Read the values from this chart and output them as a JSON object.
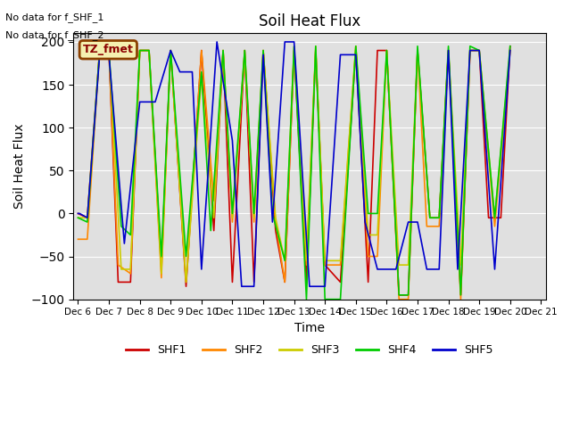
{
  "title": "Soil Heat Flux",
  "ylabel": "Soil Heat Flux",
  "xlabel": "Time",
  "text_no_data": [
    "No data for f_SHF_1",
    "No data for f_SHF_2"
  ],
  "legend_label": "TZ_fmet",
  "ylim": [
    -100,
    210
  ],
  "series_colors": {
    "SHF1": "#cc0000",
    "SHF2": "#ff8800",
    "SHF3": "#cccc00",
    "SHF4": "#00cc00",
    "SHF5": "#0000cc"
  },
  "background_color": "#e0e0e0",
  "x_tick_labels": [
    "Dec 6",
    "Dec 7",
    "Dec 8",
    "Dec 9",
    "Dec 10",
    "Dec 11",
    "Dec 12",
    "Dec 13",
    "Dec 14",
    "Dec 15",
    "Dec 16",
    "Dec 17",
    "Dec 18",
    "Dec 19",
    "Dec 20",
    "Dec 21"
  ],
  "SHF1_x": [
    6.0,
    6.3,
    6.7,
    7.0,
    7.3,
    7.7,
    8.0,
    8.3,
    8.7,
    9.0,
    9.5,
    10.0,
    10.4,
    10.7,
    11.0,
    11.4,
    11.7,
    12.0,
    12.4,
    12.7,
    13.0,
    13.4,
    13.7,
    14.0,
    14.5,
    15.0,
    15.4,
    15.7,
    16.0,
    16.4,
    16.7,
    17.0,
    17.4,
    17.7,
    18.0,
    18.4,
    18.7,
    19.0,
    19.3,
    19.7,
    20.0
  ],
  "SHF1_y": [
    0,
    -5,
    190,
    190,
    -80,
    -80,
    190,
    190,
    -60,
    190,
    -85,
    190,
    -20,
    190,
    -80,
    190,
    -80,
    190,
    -20,
    -80,
    190,
    -80,
    190,
    -60,
    -80,
    190,
    -80,
    190,
    190,
    -95,
    -95,
    190,
    -5,
    -5,
    190,
    -95,
    190,
    190,
    -5,
    -5,
    195
  ],
  "SHF2_x": [
    6.0,
    6.3,
    6.7,
    7.0,
    7.3,
    7.7,
    8.0,
    8.3,
    8.7,
    9.0,
    9.5,
    10.0,
    10.4,
    10.7,
    11.0,
    11.4,
    11.7,
    12.0,
    12.4,
    12.7,
    13.0,
    13.4,
    13.7,
    14.0,
    14.5,
    15.0,
    15.4,
    15.7,
    16.0,
    16.4,
    16.7,
    17.0,
    17.3,
    17.7,
    18.0,
    18.4,
    18.7,
    19.0,
    19.5,
    20.0
  ],
  "SHF2_y": [
    -30,
    -30,
    190,
    190,
    -60,
    -70,
    190,
    190,
    -75,
    190,
    -80,
    190,
    15,
    190,
    -10,
    190,
    -10,
    190,
    -10,
    -80,
    190,
    -60,
    190,
    -60,
    -60,
    195,
    -50,
    -50,
    190,
    -100,
    -100,
    190,
    -15,
    -15,
    190,
    -100,
    190,
    190,
    -15,
    190
  ],
  "SHF3_x": [
    6.0,
    6.3,
    6.7,
    7.0,
    7.4,
    7.7,
    8.0,
    8.3,
    8.7,
    9.0,
    9.5,
    10.0,
    10.4,
    10.7,
    11.0,
    11.4,
    11.7,
    12.0,
    12.4,
    12.7,
    13.0,
    13.4,
    13.7,
    14.0,
    14.5,
    15.0,
    15.4,
    15.7,
    16.0,
    16.4,
    16.7,
    17.0,
    17.4,
    17.7,
    18.0,
    18.4,
    18.7,
    19.0,
    19.5,
    20.0
  ],
  "SHF3_y": [
    -5,
    -5,
    190,
    190,
    -65,
    -65,
    190,
    190,
    -70,
    190,
    -80,
    160,
    -5,
    190,
    -5,
    185,
    -5,
    190,
    -5,
    -55,
    195,
    -55,
    195,
    -55,
    -55,
    195,
    -25,
    -25,
    190,
    -60,
    -60,
    190,
    -5,
    -5,
    190,
    -60,
    190,
    190,
    -5,
    190
  ],
  "SHF4_x": [
    6.0,
    6.3,
    6.7,
    7.0,
    7.4,
    7.7,
    8.0,
    8.3,
    8.7,
    9.0,
    9.5,
    10.0,
    10.3,
    10.7,
    11.0,
    11.4,
    11.7,
    12.0,
    12.3,
    12.7,
    13.0,
    13.4,
    13.7,
    14.0,
    14.5,
    15.0,
    15.4,
    15.7,
    16.0,
    16.4,
    16.7,
    17.0,
    17.4,
    17.7,
    18.0,
    18.4,
    18.7,
    19.0,
    19.5,
    20.0
  ],
  "SHF4_y": [
    -5,
    -10,
    190,
    190,
    -15,
    -25,
    190,
    190,
    -50,
    190,
    -50,
    165,
    -20,
    190,
    0,
    190,
    0,
    190,
    0,
    -55,
    195,
    -100,
    195,
    -100,
    -100,
    195,
    0,
    0,
    190,
    -95,
    -95,
    195,
    -5,
    -5,
    195,
    -95,
    195,
    190,
    -5,
    195
  ],
  "SHF5_x": [
    6.0,
    6.05,
    6.3,
    6.7,
    7.0,
    7.5,
    8.0,
    8.5,
    9.0,
    9.3,
    9.7,
    10.0,
    10.5,
    11.0,
    11.3,
    11.7,
    12.0,
    12.3,
    12.7,
    13.0,
    13.5,
    14.0,
    14.5,
    15.0,
    15.3,
    15.7,
    16.0,
    16.3,
    16.7,
    17.0,
    17.3,
    17.7,
    18.0,
    18.3,
    18.7,
    19.0,
    19.5,
    20.0
  ],
  "SHF5_y": [
    0,
    0,
    -5,
    185,
    185,
    -35,
    130,
    130,
    190,
    165,
    165,
    -65,
    200,
    85,
    -85,
    -85,
    185,
    -10,
    200,
    200,
    -85,
    -85,
    185,
    185,
    -10,
    -65,
    -65,
    -65,
    -10,
    -10,
    -65,
    -65,
    190,
    -65,
    190,
    190,
    -65,
    190
  ]
}
